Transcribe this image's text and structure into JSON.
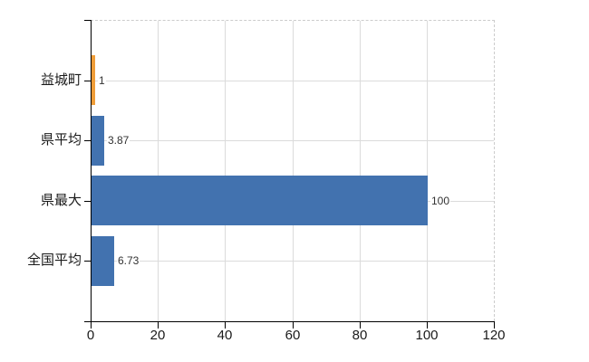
{
  "chart_data": {
    "type": "bar",
    "orientation": "horizontal",
    "title": "",
    "categories": [
      "益城町",
      "県平均",
      "県最大",
      "全国平均"
    ],
    "values": [
      1,
      3.87,
      100,
      6.73
    ],
    "value_labels": [
      "1",
      "3.87",
      "100",
      "6.73"
    ],
    "xlim": [
      0,
      120
    ],
    "x_ticks": [
      0,
      20,
      40,
      60,
      80,
      100,
      120
    ],
    "x_tick_labels": [
      "0",
      "20",
      "40",
      "60",
      "80",
      "100",
      "120"
    ],
    "grid": true,
    "legend": false,
    "highlight_index": 0,
    "colors": {
      "bar_default": "#4272AF",
      "bar_highlight": "#EF9D38",
      "axis": "#000000",
      "gridline": "#DBDBDB",
      "frame_dashed": "#CCCCCC",
      "label_text": "#1A1A1A",
      "value_text": "#333333",
      "background": "#FFFFFF"
    }
  }
}
